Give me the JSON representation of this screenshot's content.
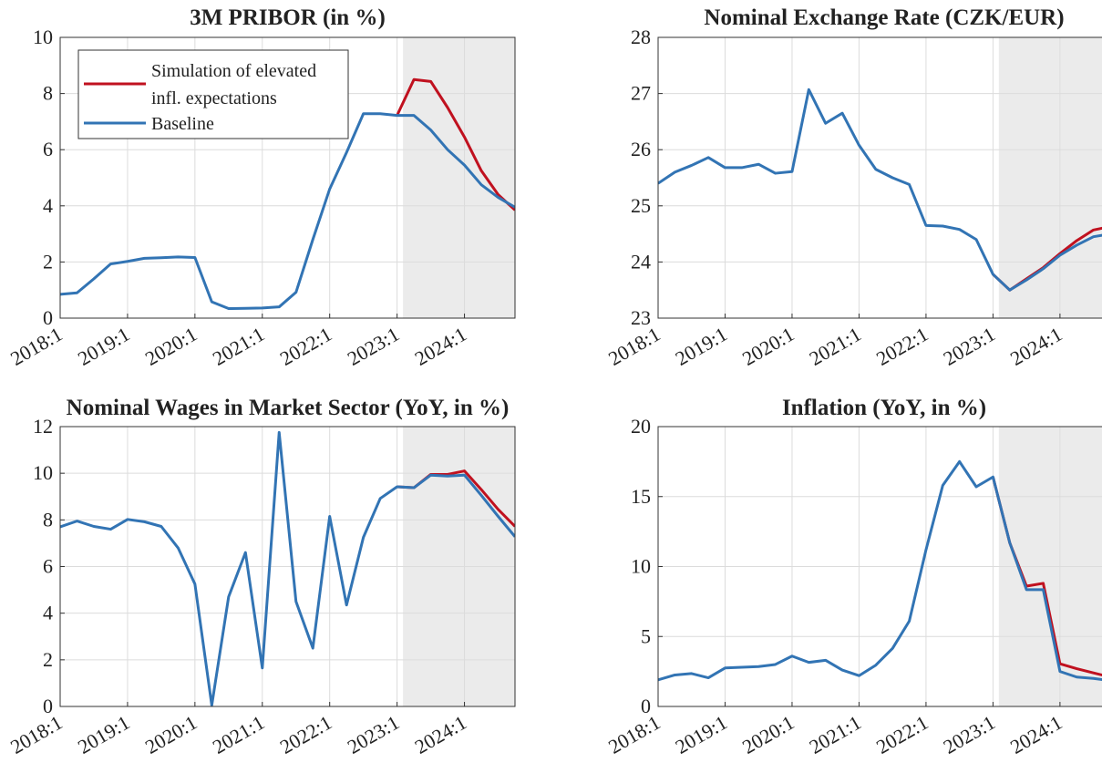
{
  "chart_data": [
    {
      "type": "line",
      "title": "3M PRIBOR (in %)",
      "categories": [
        "2018:1",
        null,
        null,
        null,
        "2019:1",
        null,
        null,
        null,
        "2020:1",
        null,
        null,
        null,
        "2021:1",
        null,
        null,
        null,
        "2022:1",
        null,
        null,
        null,
        "2023:1",
        null,
        null,
        null,
        "2024:1",
        null,
        null,
        null
      ],
      "series": [
        {
          "name": "Simulation of elevated\ninfl. expectations",
          "color": "#c0111f",
          "values": [
            null,
            null,
            null,
            null,
            null,
            null,
            null,
            null,
            null,
            null,
            null,
            null,
            null,
            null,
            null,
            null,
            null,
            null,
            null,
            null,
            7.22,
            8.5,
            8.43,
            7.5,
            6.45,
            5.25,
            4.4,
            3.85
          ]
        },
        {
          "name": "Baseline",
          "color": "#3274b4",
          "values": [
            0.85,
            0.9,
            1.4,
            1.93,
            2.02,
            2.13,
            2.15,
            2.18,
            2.16,
            0.58,
            0.34,
            0.35,
            0.36,
            0.4,
            0.92,
            2.8,
            4.6,
            5.9,
            7.28,
            7.28,
            7.22,
            7.22,
            6.7,
            6.0,
            5.45,
            4.75,
            4.3,
            3.95
          ]
        }
      ],
      "ylim": [
        0,
        10
      ],
      "yticks": [
        0,
        2,
        4,
        6,
        8,
        10
      ],
      "grid": true,
      "legend": "upper left",
      "shade_start_index": 20.35
    },
    {
      "type": "line",
      "title": "Nominal Exchange Rate (CZK/EUR)",
      "categories": [
        "2018:1",
        null,
        null,
        null,
        "2019:1",
        null,
        null,
        null,
        "2020:1",
        null,
        null,
        null,
        "2021:1",
        null,
        null,
        null,
        "2022:1",
        null,
        null,
        null,
        "2023:1",
        null,
        null,
        null,
        "2024:1",
        null,
        null,
        null
      ],
      "series": [
        {
          "color": "#c0111f",
          "values": [
            null,
            null,
            null,
            null,
            null,
            null,
            null,
            null,
            null,
            null,
            null,
            null,
            null,
            null,
            null,
            null,
            null,
            null,
            null,
            null,
            23.78,
            23.5,
            23.7,
            23.9,
            24.15,
            24.38,
            24.57,
            24.63
          ]
        },
        {
          "color": "#3274b4",
          "values": [
            25.4,
            25.6,
            25.72,
            25.86,
            25.68,
            25.68,
            25.74,
            25.58,
            25.61,
            27.07,
            26.47,
            26.65,
            26.08,
            25.65,
            25.5,
            25.38,
            24.65,
            24.64,
            24.58,
            24.4,
            23.78,
            23.5,
            23.68,
            23.88,
            24.12,
            24.3,
            24.45,
            24.5
          ]
        }
      ],
      "ylim": [
        23,
        28
      ],
      "yticks": [
        23,
        24,
        25,
        26,
        27,
        28
      ],
      "grid": true,
      "shade_start_index": 20.35
    },
    {
      "type": "line",
      "title": "Nominal Wages in Market Sector (YoY, in %)",
      "categories": [
        "2018:1",
        null,
        null,
        null,
        "2019:1",
        null,
        null,
        null,
        "2020:1",
        null,
        null,
        null,
        "2021:1",
        null,
        null,
        null,
        "2022:1",
        null,
        null,
        null,
        "2023:1",
        null,
        null,
        null,
        "2024:1",
        null,
        null,
        null
      ],
      "series": [
        {
          "color": "#c0111f",
          "values": [
            null,
            null,
            null,
            null,
            null,
            null,
            null,
            null,
            null,
            null,
            null,
            null,
            null,
            null,
            null,
            null,
            null,
            null,
            null,
            null,
            9.42,
            9.38,
            9.95,
            9.95,
            10.1,
            9.3,
            8.45,
            7.72
          ]
        },
        {
          "color": "#3274b4",
          "values": [
            7.7,
            7.95,
            7.72,
            7.6,
            8.02,
            7.92,
            7.72,
            6.8,
            5.25,
            0.05,
            4.7,
            6.6,
            1.65,
            11.75,
            4.5,
            2.5,
            8.15,
            4.35,
            7.25,
            8.92,
            9.42,
            9.38,
            9.92,
            9.88,
            9.92,
            9.05,
            8.15,
            7.28
          ]
        }
      ],
      "ylim": [
        0,
        12
      ],
      "yticks": [
        0,
        2,
        4,
        6,
        8,
        10,
        12
      ],
      "grid": true,
      "shade_start_index": 20.35
    },
    {
      "type": "line",
      "title": "Inflation (YoY, in %)",
      "categories": [
        "2018:1",
        null,
        null,
        null,
        "2019:1",
        null,
        null,
        null,
        "2020:1",
        null,
        null,
        null,
        "2021:1",
        null,
        null,
        null,
        "2022:1",
        null,
        null,
        null,
        "2023:1",
        null,
        null,
        null,
        "2024:1",
        null,
        null,
        null
      ],
      "series": [
        {
          "color": "#c0111f",
          "values": [
            null,
            null,
            null,
            null,
            null,
            null,
            null,
            null,
            null,
            null,
            null,
            null,
            null,
            null,
            null,
            null,
            null,
            null,
            null,
            null,
            16.4,
            11.7,
            8.6,
            8.8,
            3.05,
            2.7,
            2.4,
            2.1
          ]
        },
        {
          "color": "#3274b4",
          "values": [
            1.9,
            2.25,
            2.35,
            2.05,
            2.75,
            2.8,
            2.85,
            3.0,
            3.6,
            3.15,
            3.3,
            2.6,
            2.2,
            2.95,
            4.15,
            6.1,
            11.2,
            15.8,
            17.5,
            15.7,
            16.4,
            11.7,
            8.35,
            8.35,
            2.5,
            2.1,
            2.0,
            1.85
          ]
        }
      ],
      "ylim": [
        0,
        20
      ],
      "yticks": [
        0,
        5,
        10,
        15,
        20
      ],
      "grid": true,
      "shade_start_index": 20.35
    }
  ]
}
